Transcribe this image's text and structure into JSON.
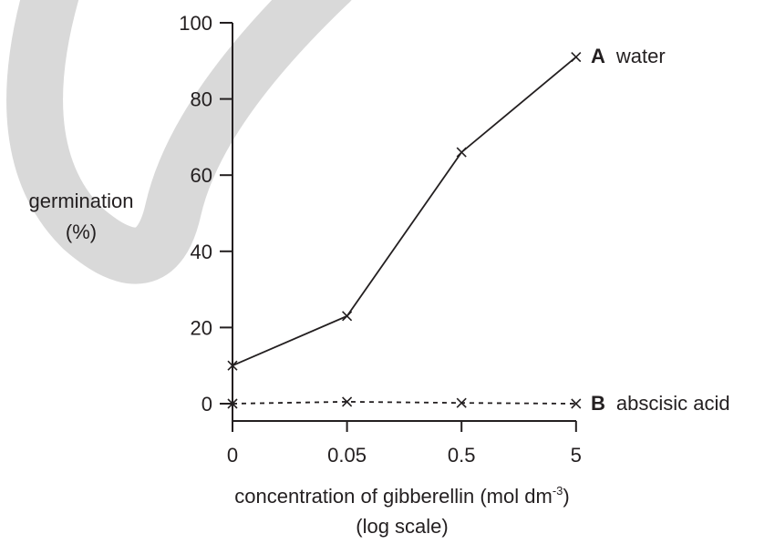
{
  "chart_data": {
    "type": "line",
    "x_scale": "log",
    "categories": [
      "0",
      "0.05",
      "0.5",
      "5"
    ],
    "ylim": [
      0,
      100
    ],
    "yticks": [
      0,
      20,
      40,
      60,
      80,
      100
    ],
    "ylabel": [
      "germination",
      "(%)"
    ],
    "xlabel": {
      "main": "concentration of gibberellin (mol dm",
      "superscript": "-3",
      "close": ")",
      "line2": "(log scale)"
    },
    "grid": false,
    "series": [
      {
        "letter": "A",
        "name": "water",
        "values": [
          10,
          23,
          66,
          91
        ],
        "line_style": "solid",
        "marker": "x"
      },
      {
        "letter": "B",
        "name": "abscisic acid",
        "values": [
          0,
          0.5,
          0.2,
          0
        ],
        "line_style": "dashed",
        "marker": "x"
      }
    ],
    "colors": {
      "ink": "#231f20",
      "watermark": "#d9d9d9"
    }
  }
}
